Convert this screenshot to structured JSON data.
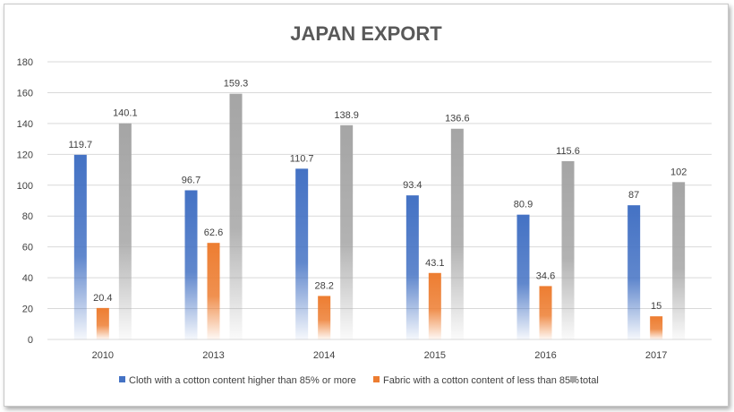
{
  "chart_data": {
    "type": "bar",
    "title": "JAPAN EXPORT",
    "categories": [
      "2010",
      "2013",
      "2014",
      "2015",
      "2016",
      "2017"
    ],
    "series": [
      {
        "name": "Cloth with a cotton content higher than 85% or more",
        "color": "#4472C4",
        "values": [
          119.7,
          96.7,
          110.7,
          93.4,
          80.9,
          87
        ]
      },
      {
        "name": "Fabric with a cotton content of less than 85%",
        "color": "#ED7D31",
        "values": [
          20.4,
          62.6,
          28.2,
          43.1,
          34.6,
          15
        ]
      },
      {
        "name": "total",
        "color": "#A5A5A5",
        "values": [
          140.1,
          159.3,
          138.9,
          136.6,
          115.6,
          102
        ]
      }
    ],
    "y_ticks": [
      "0",
      "20",
      "40",
      "60",
      "80",
      "100",
      "120",
      "140",
      "160",
      "180"
    ],
    "ylim": [
      0,
      180
    ],
    "xlabel": "",
    "ylabel": "",
    "grid": true,
    "legend_position": "bottom"
  }
}
